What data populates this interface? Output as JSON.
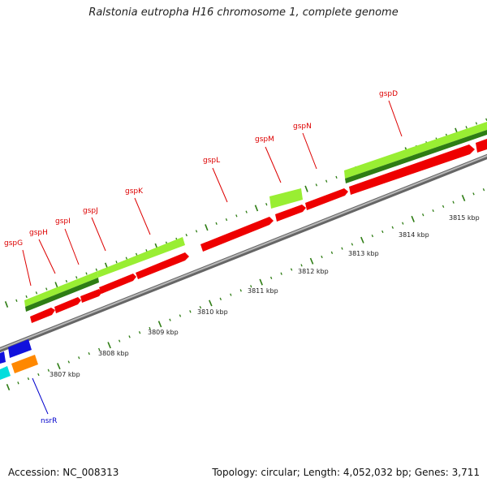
{
  "title": "Ralstonia eutropha H16 chromosome 1, complete genome",
  "accession": "Accession: NC_008313",
  "summary": "Topology: circular; Length: 4,052,032 bp; Genes: 3,711",
  "colors": {
    "backbone": "#8c8c8c",
    "cds_red": "#ee0000",
    "gene_lime": "#99ee33",
    "gene_dark": "#2e7d14",
    "tick": "#2e7d14",
    "label_red": "#dd0000",
    "label_blue": "#0000cc",
    "blue_block": "#1111dd",
    "cyan_block": "#00dddd",
    "orange_block": "#ff8800"
  },
  "scale": {
    "unit": "kbp",
    "labels": [
      "3807 kbp",
      "3808 kbp",
      "3809 kbp",
      "3810 kbp",
      "3811 kbp",
      "3812 kbp",
      "3813 kbp",
      "3814 kbp",
      "3815 kbp"
    ]
  },
  "gene_labels": [
    "gspG",
    "gspH",
    "gspI",
    "gspJ",
    "gspK",
    "gspL",
    "gspM",
    "gspN",
    "gspD",
    "nsrR"
  ]
}
